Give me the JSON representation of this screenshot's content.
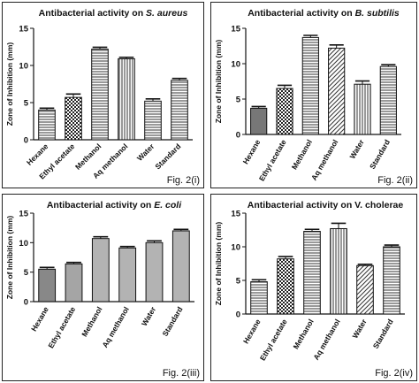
{
  "chart_data": [
    {
      "type": "bar",
      "title_prefix": "Antibacterial activity on ",
      "title_italic": "S. aureus",
      "ylabel": "Zone of Inhibition (mm)",
      "ylim": [
        0,
        15
      ],
      "yticks": [
        "0",
        "5",
        "10",
        "15"
      ],
      "categories": [
        "Hexane",
        "Ethyl acetate",
        "Methanol",
        "Aq methanol",
        "Water",
        "Standard"
      ],
      "values": [
        4.0,
        5.7,
        12.2,
        10.9,
        5.2,
        8.0
      ],
      "errors": [
        0.25,
        0.45,
        0.25,
        0.2,
        0.3,
        0.25
      ],
      "fig_label": "Fig. 2(i)"
    },
    {
      "type": "bar",
      "title_prefix": "Antibacterial activity on ",
      "title_italic": "B. subtilis",
      "ylabel": "Zone of Inhibition (mm)",
      "ylim": [
        0,
        15
      ],
      "yticks": [
        "0",
        "5",
        "10",
        "15"
      ],
      "categories": [
        "Hexane",
        "Ethyl acetate",
        "Methanol",
        "Aq methanol",
        "Water",
        "Standard"
      ],
      "values": [
        3.7,
        6.5,
        13.7,
        12.2,
        7.1,
        9.6
      ],
      "errors": [
        0.25,
        0.45,
        0.3,
        0.45,
        0.45,
        0.25
      ],
      "fig_label": "Fig. 2(ii)"
    },
    {
      "type": "bar",
      "title_prefix": "Antibacterial activity on ",
      "title_italic": "E. coli",
      "ylabel": "Zone of Inhibition (mm)",
      "ylim": [
        0,
        15
      ],
      "yticks": [
        "0",
        "5",
        "10",
        "15"
      ],
      "categories": [
        "Hexane",
        "Ethyl acetate",
        "Methanol",
        "Aq methanol",
        "Water",
        "Standard"
      ],
      "values": [
        5.5,
        6.4,
        10.7,
        9.1,
        10.0,
        12.0
      ],
      "errors": [
        0.3,
        0.25,
        0.3,
        0.25,
        0.3,
        0.25
      ],
      "fig_label": "Fig. 2(iii)"
    },
    {
      "type": "bar",
      "title_prefix": "Antibacterial activity on V. cholerae",
      "title_italic": "",
      "ylabel": "Zone of Inhibition (mm)",
      "ylim": [
        0,
        15
      ],
      "yticks": [
        "0",
        "5",
        "10",
        "15"
      ],
      "categories": [
        "Hexane",
        "Ethyl acetate",
        "Methanol",
        "Aq methanol",
        "Water",
        "Standard"
      ],
      "values": [
        4.8,
        8.2,
        12.3,
        12.7,
        7.2,
        10.0
      ],
      "errors": [
        0.3,
        0.35,
        0.3,
        0.8,
        0.2,
        0.25
      ],
      "fig_label": "Fig. 2(iv)"
    }
  ]
}
